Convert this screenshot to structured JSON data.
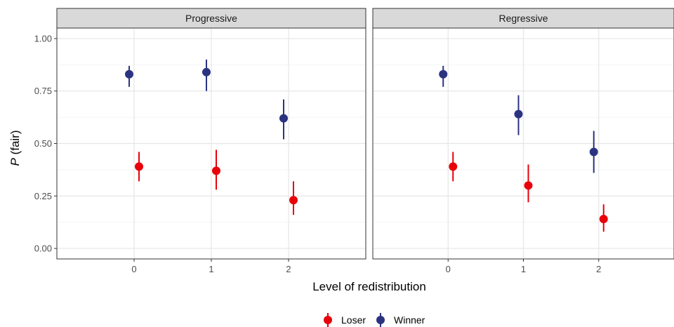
{
  "chart_data": {
    "type": "scatter",
    "subtype": "pointrange",
    "xlabel": "Level of redistribution",
    "ylabel_italic": "P",
    "ylabel_rest": " (fair)",
    "x_categories": [
      "0",
      "1",
      "2"
    ],
    "y_ticks": [
      "0.00",
      "0.25",
      "0.50",
      "0.75",
      "1.00"
    ],
    "ylim": [
      -0.05,
      1.05
    ],
    "grid": true,
    "legend_position": "bottom",
    "panels": [
      "Progressive",
      "Regressive"
    ],
    "series": [
      {
        "name": "Loser",
        "color": "#e8000b",
        "values": {
          "Progressive": [
            {
              "x": "0",
              "y": 0.39,
              "lo": 0.32,
              "hi": 0.46
            },
            {
              "x": "1",
              "y": 0.37,
              "lo": 0.28,
              "hi": 0.47
            },
            {
              "x": "2",
              "y": 0.23,
              "lo": 0.16,
              "hi": 0.32
            }
          ],
          "Regressive": [
            {
              "x": "0",
              "y": 0.39,
              "lo": 0.32,
              "hi": 0.46
            },
            {
              "x": "1",
              "y": 0.3,
              "lo": 0.22,
              "hi": 0.4
            },
            {
              "x": "2",
              "y": 0.14,
              "lo": 0.08,
              "hi": 0.21
            }
          ]
        }
      },
      {
        "name": "Winner",
        "color": "#2b3381",
        "values": {
          "Progressive": [
            {
              "x": "0",
              "y": 0.83,
              "lo": 0.77,
              "hi": 0.87
            },
            {
              "x": "1",
              "y": 0.84,
              "lo": 0.75,
              "hi": 0.9
            },
            {
              "x": "2",
              "y": 0.62,
              "lo": 0.52,
              "hi": 0.71
            }
          ],
          "Regressive": [
            {
              "x": "0",
              "y": 0.83,
              "lo": 0.77,
              "hi": 0.87
            },
            {
              "x": "1",
              "y": 0.64,
              "lo": 0.54,
              "hi": 0.73
            },
            {
              "x": "2",
              "y": 0.46,
              "lo": 0.36,
              "hi": 0.56
            }
          ]
        }
      }
    ]
  }
}
